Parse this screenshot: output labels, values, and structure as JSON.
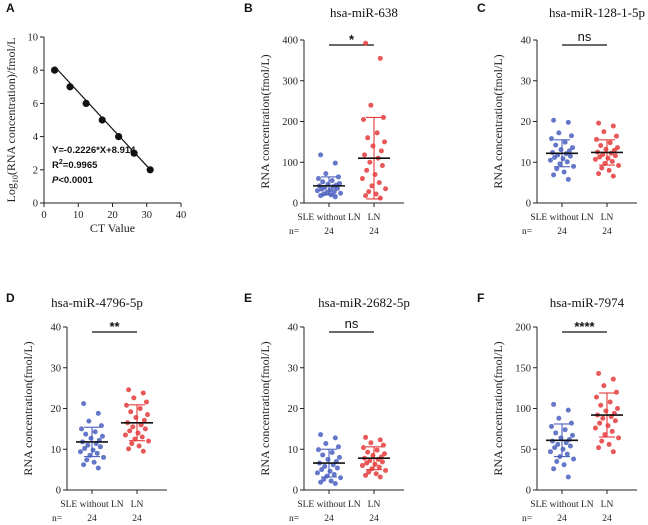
{
  "colors": {
    "blue": "#4a5fbf",
    "red": "#e53b3b",
    "axis": "#222222",
    "line": "#111111"
  },
  "chart_data": [
    {
      "letter": "A",
      "type": "scatter",
      "title": "",
      "xlabel": "CT Value",
      "ylabel": "Log10(RNA concentration)/fmol/L",
      "ylabel_parts": {
        "pre": "Log",
        "sub": "10",
        "post": "(RNA concentration)/fmol/L"
      },
      "xlim": [
        0,
        40
      ],
      "ylim": [
        0,
        10
      ],
      "xticks": [
        0,
        10,
        20,
        30,
        40
      ],
      "yticks": [
        0,
        2,
        4,
        6,
        8,
        10
      ],
      "x": [
        3.1,
        7.6,
        12.3,
        17.0,
        21.8,
        26.3,
        31.0
      ],
      "y": [
        8,
        7,
        6,
        5,
        4,
        3,
        2
      ],
      "fit": {
        "slope": -0.2226,
        "intercept": 8.914
      },
      "annotations": {
        "equation": "Y=-0.2226*X+8.914",
        "r2_pre": "R",
        "r2_sup": "2",
        "r2_post": "=0.9965",
        "p_pre": "P",
        "p_post": "<0.0001"
      }
    },
    {
      "letter": "B",
      "type": "scatter",
      "title": "hsa-miR-638",
      "ylabel": "RNA concentration(fmol/L)",
      "ylim": [
        0,
        400
      ],
      "yticks": [
        0,
        100,
        200,
        300,
        400
      ],
      "significance": "*",
      "n_prefix": "n=",
      "groups": [
        {
          "name": "SLE without LN",
          "n": "24",
          "color": "#4a5fbf",
          "mean": 42,
          "sd": 22,
          "values": [
            118,
            98,
            72,
            64,
            60,
            55,
            52,
            48,
            46,
            44,
            42,
            40,
            38,
            36,
            34,
            32,
            30,
            28,
            26,
            24,
            22,
            20,
            18,
            15
          ]
        },
        {
          "name": "LN",
          "n": "24",
          "color": "#e53b3b",
          "mean": 110,
          "sd": 100,
          "values": [
            392,
            355,
            240,
            210,
            205,
            172,
            160,
            150,
            140,
            128,
            118,
            110,
            100,
            92,
            80,
            70,
            60,
            50,
            42,
            35,
            28,
            22,
            18,
            12
          ]
        }
      ]
    },
    {
      "letter": "C",
      "type": "scatter",
      "title": "hsa-miR-128-1-5p",
      "ylabel": "RNA concentration(fmol/L)",
      "ylim": [
        0,
        40
      ],
      "yticks": [
        0,
        10,
        20,
        30,
        40
      ],
      "significance": "ns",
      "n_prefix": "n=",
      "groups": [
        {
          "name": "SLE without LN",
          "n": "24",
          "color": "#4a5fbf",
          "mean": 12.2,
          "sd": 3.3,
          "values": [
            20.3,
            19.8,
            17.2,
            16.5,
            15.8,
            14.9,
            14.2,
            13.6,
            13.1,
            12.8,
            12.4,
            12.1,
            11.8,
            11.5,
            11.2,
            10.9,
            10.5,
            10.1,
            9.6,
            9.0,
            8.4,
            7.6,
            6.9,
            5.8
          ]
        },
        {
          "name": "LN",
          "n": "24",
          "color": "#e53b3b",
          "mean": 12.4,
          "sd": 3.1,
          "values": [
            19.6,
            18.9,
            17.5,
            16.4,
            15.6,
            14.8,
            14.1,
            13.6,
            13.2,
            12.9,
            12.5,
            12.2,
            11.9,
            11.6,
            11.3,
            11.0,
            10.7,
            10.2,
            9.7,
            9.2,
            8.6,
            8.0,
            7.2,
            6.6
          ]
        }
      ]
    },
    {
      "letter": "D",
      "type": "scatter",
      "title": "hsa-miR-4796-5p",
      "ylabel": "RNA concentration(fmol/L)",
      "ylim": [
        0,
        40
      ],
      "yticks": [
        0,
        10,
        20,
        30,
        40
      ],
      "significance": "**",
      "n_prefix": "n=",
      "groups": [
        {
          "name": "SLE without LN",
          "n": "24",
          "color": "#4a5fbf",
          "mean": 11.8,
          "sd": 3.6,
          "values": [
            21.2,
            18.8,
            16.9,
            15.8,
            15.0,
            14.3,
            13.7,
            13.2,
            12.7,
            12.2,
            11.8,
            11.4,
            11.0,
            10.6,
            10.2,
            9.8,
            9.4,
            9.0,
            8.5,
            8.0,
            7.4,
            6.8,
            6.2,
            5.4
          ]
        },
        {
          "name": "LN",
          "n": "24",
          "color": "#e53b3b",
          "mean": 16.5,
          "sd": 4.4,
          "values": [
            24.6,
            23.8,
            22.6,
            21.6,
            20.8,
            20.0,
            19.2,
            18.5,
            17.8,
            17.1,
            16.5,
            16.0,
            15.5,
            15.0,
            14.5,
            14.0,
            13.5,
            13.0,
            12.5,
            12.0,
            11.4,
            10.8,
            10.1,
            9.5
          ]
        }
      ]
    },
    {
      "letter": "E",
      "type": "scatter",
      "title": "hsa-miR-2682-5p",
      "ylabel": "RNA concentration(fmol/L)",
      "ylim": [
        0,
        40
      ],
      "yticks": [
        0,
        10,
        20,
        30,
        40
      ],
      "significance": "ns",
      "n_prefix": "n=",
      "groups": [
        {
          "name": "SLE without LN",
          "n": "24",
          "color": "#4a5fbf",
          "mean": 6.6,
          "sd": 3.4,
          "values": [
            13.6,
            12.8,
            11.4,
            10.6,
            9.9,
            9.2,
            8.6,
            8.0,
            7.5,
            7.0,
            6.6,
            6.2,
            5.8,
            5.4,
            5.0,
            4.6,
            4.2,
            3.8,
            3.4,
            3.0,
            2.6,
            2.2,
            1.9,
            1.6
          ]
        },
        {
          "name": "LN",
          "n": "24",
          "color": "#e53b3b",
          "mean": 7.8,
          "sd": 2.8,
          "values": [
            12.9,
            12.3,
            11.6,
            11.0,
            10.4,
            9.8,
            9.3,
            8.9,
            8.5,
            8.1,
            7.8,
            7.5,
            7.2,
            6.9,
            6.6,
            6.3,
            6.0,
            5.6,
            5.2,
            4.8,
            4.4,
            4.0,
            3.6,
            3.2
          ]
        }
      ]
    },
    {
      "letter": "F",
      "type": "scatter",
      "title": "hsa-miR-7974",
      "ylabel": "RNA concentration(fmol/L)",
      "ylim": [
        0,
        200
      ],
      "yticks": [
        0,
        50,
        100,
        150,
        200
      ],
      "significance": "****",
      "n_prefix": "n=",
      "groups": [
        {
          "name": "SLE without LN",
          "n": "24",
          "color": "#4a5fbf",
          "mean": 61,
          "sd": 20,
          "values": [
            105,
            98,
            88,
            82,
            78,
            74,
            70,
            67,
            64,
            62,
            60,
            58,
            56,
            54,
            52,
            50,
            47,
            44,
            41,
            38,
            35,
            31,
            26,
            16
          ]
        },
        {
          "name": "LN",
          "n": "24",
          "color": "#e53b3b",
          "mean": 92,
          "sd": 27,
          "values": [
            143,
            136,
            128,
            120,
            114,
            108,
            104,
            100,
            97,
            94,
            92,
            90,
            88,
            85,
            82,
            79,
            76,
            72,
            68,
            64,
            60,
            56,
            52,
            47
          ]
        }
      ]
    }
  ]
}
